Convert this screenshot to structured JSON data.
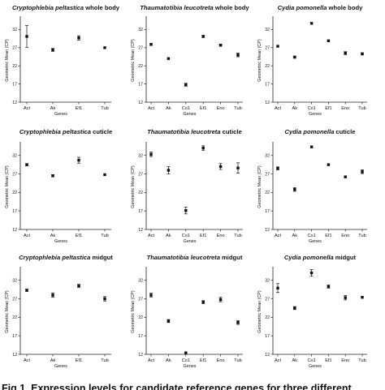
{
  "caption": "Fig 1. Expression levels for candidate reference genes for three different",
  "chart_data": [
    {
      "type": "scatter",
      "title_species": "Cryptophlebia peltastica",
      "title_tissue": "whole body",
      "xlabel": "Genes",
      "ylabel": "Geometric Mean (CP)",
      "ylim": [
        12,
        35
      ],
      "yticks": [
        12,
        17,
        22,
        27,
        32
      ],
      "categories": [
        "Act",
        "Ak",
        "Ef1",
        "Tub"
      ],
      "values": [
        30.1,
        26.4,
        29.7,
        27.0
      ],
      "errors": [
        3.0,
        0.4,
        0.6,
        0.2
      ]
    },
    {
      "type": "scatter",
      "title_species": "Thaumatotibia leucotreta",
      "title_tissue": "whole body",
      "xlabel": "Genes",
      "ylabel": "Geometric Mean (CP)",
      "ylim": [
        12,
        35
      ],
      "yticks": [
        12,
        17,
        22,
        27,
        32
      ],
      "categories": [
        "Act",
        "Ak",
        "Co1",
        "Ef1",
        "Eno",
        "Tub"
      ],
      "values": [
        27.9,
        24.0,
        16.8,
        30.1,
        27.7,
        25.0
      ],
      "errors": [
        0.3,
        0.2,
        0.4,
        0.3,
        0.3,
        0.5
      ]
    },
    {
      "type": "scatter",
      "title_species": "Cydia pomonella",
      "title_tissue": "whole body",
      "xlabel": "Genes",
      "ylabel": "Geometric Mean (CP)",
      "ylim": [
        12,
        35
      ],
      "yticks": [
        12,
        17,
        22,
        27,
        32
      ],
      "categories": [
        "Act",
        "Ak",
        "Co1",
        "Ef1",
        "Eno",
        "Tub"
      ],
      "values": [
        27.4,
        24.4,
        33.7,
        28.9,
        25.5,
        25.3
      ],
      "errors": [
        0.2,
        0.3,
        0.2,
        0.2,
        0.4,
        0.3
      ]
    },
    {
      "type": "scatter",
      "title_species": "Cryptophlebia peltastica",
      "title_tissue": "cuticle",
      "xlabel": "Genes",
      "ylabel": "Geometric Mean (CP)",
      "ylim": [
        12,
        35
      ],
      "yticks": [
        12,
        17,
        22,
        27,
        32
      ],
      "categories": [
        "Act",
        "Ak",
        "Ef1",
        "Tub"
      ],
      "values": [
        29.5,
        26.5,
        30.7,
        26.8
      ],
      "errors": [
        0.3,
        0.3,
        0.8,
        0.2
      ]
    },
    {
      "type": "scatter",
      "title_species": "Thaumatotibia leucotreta",
      "title_tissue": "cuticle",
      "xlabel": "Genes",
      "ylabel": "Geometric Mean (CP)",
      "ylim": [
        12,
        35
      ],
      "yticks": [
        12,
        17,
        22,
        27,
        32
      ],
      "categories": [
        "Act",
        "Ak",
        "Co1",
        "Ef1",
        "Eno",
        "Tub"
      ],
      "values": [
        32.3,
        28.0,
        17.1,
        34.0,
        29.0,
        28.6
      ],
      "errors": [
        0.6,
        1.0,
        0.9,
        0.6,
        0.8,
        1.4
      ]
    },
    {
      "type": "scatter",
      "title_species": "Cydia pomonella",
      "title_tissue": "cuticle",
      "xlabel": "Genes",
      "ylabel": "Geometric Mean (CP)",
      "ylim": [
        12,
        35
      ],
      "yticks": [
        12,
        17,
        22,
        27,
        32
      ],
      "categories": [
        "Act",
        "Ak",
        "Co1",
        "Ef1",
        "Eno",
        "Tub"
      ],
      "values": [
        28.5,
        22.8,
        34.3,
        29.5,
        26.2,
        27.6
      ],
      "errors": [
        0.4,
        0.5,
        0.2,
        0.2,
        0.2,
        0.5
      ]
    },
    {
      "type": "scatter",
      "title_species": "Cryptophlebia peltastica",
      "title_tissue": "midgut",
      "xlabel": "Genes",
      "ylabel": "Geometric Mean (CP)",
      "ylim": [
        12,
        35
      ],
      "yticks": [
        12,
        17,
        22,
        27,
        32
      ],
      "categories": [
        "Act",
        "Ak",
        "Ef1",
        "Tub"
      ],
      "values": [
        29.3,
        28.0,
        30.5,
        27.0
      ],
      "errors": [
        0.3,
        0.6,
        0.4,
        0.6
      ]
    },
    {
      "type": "scatter",
      "title_species": "Thaumatotibia leucotreta",
      "title_tissue": "midgut",
      "xlabel": "Genes",
      "ylabel": "Geometric Mean (CP)",
      "ylim": [
        12,
        35
      ],
      "yticks": [
        12,
        17,
        22,
        27,
        32
      ],
      "categories": [
        "Act",
        "Ak",
        "Co1",
        "Ef1",
        "Eno",
        "Tub"
      ],
      "values": [
        28.0,
        21.0,
        12.4,
        26.1,
        26.8,
        20.6
      ],
      "errors": [
        0.5,
        0.4,
        0.2,
        0.4,
        0.6,
        0.5
      ]
    },
    {
      "type": "scatter",
      "title_species": "Cydia pomonella",
      "title_tissue": "midgut",
      "xlabel": "Genes",
      "ylabel": "Geometric Mean (CP)",
      "ylim": [
        12,
        35
      ],
      "yticks": [
        12,
        17,
        22,
        27,
        32
      ],
      "categories": [
        "Act",
        "Ak",
        "Co1",
        "Ef1",
        "Eno",
        "Tub"
      ],
      "values": [
        29.9,
        24.5,
        34.0,
        30.3,
        27.3,
        27.4
      ],
      "errors": [
        1.2,
        0.4,
        0.9,
        0.4,
        0.6,
        0.2
      ]
    }
  ]
}
